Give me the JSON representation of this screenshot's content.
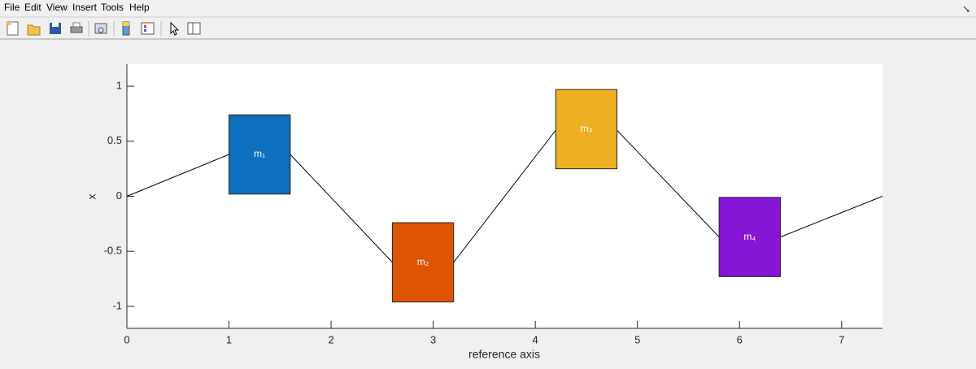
{
  "menu": [
    "File",
    "Edit",
    "View",
    "Insert",
    "Tools",
    "Help"
  ],
  "chart_data": {
    "type": "line",
    "xlabel": "reference axis",
    "ylabel": "x",
    "x": [
      0,
      1,
      1.6,
      2.6,
      3.2,
      4.2,
      4.8,
      5.8,
      6.4,
      7.4
    ],
    "values": [
      0,
      0.38,
      0.38,
      -0.6,
      -0.6,
      0.6,
      0.6,
      -0.37,
      -0.37,
      0
    ],
    "color": "#000000",
    "blocks": [
      {
        "label": "m₁",
        "color": "#0f6fbf",
        "x": [
          1,
          1.6
        ],
        "y": [
          0.02,
          0.74
        ]
      },
      {
        "label": "m₂",
        "color": "#dd5500",
        "x": [
          2.6,
          3.2
        ],
        "y": [
          -0.96,
          -0.24
        ]
      },
      {
        "label": "m₃",
        "color": "#ecb022",
        "x": [
          4.2,
          4.8
        ],
        "y": [
          0.25,
          0.97
        ]
      },
      {
        "label": "m₄",
        "color": "#8516d6",
        "x": [
          5.8,
          6.4
        ],
        "y": [
          -0.73,
          -0.01
        ]
      }
    ],
    "xlim": [
      0,
      7.4
    ],
    "xticks": [
      0,
      1,
      2,
      3,
      4,
      5,
      6,
      7
    ],
    "ylim": [
      -1.2,
      1.2
    ],
    "yticks": [
      -1,
      -0.5,
      0,
      0.5,
      1
    ]
  }
}
